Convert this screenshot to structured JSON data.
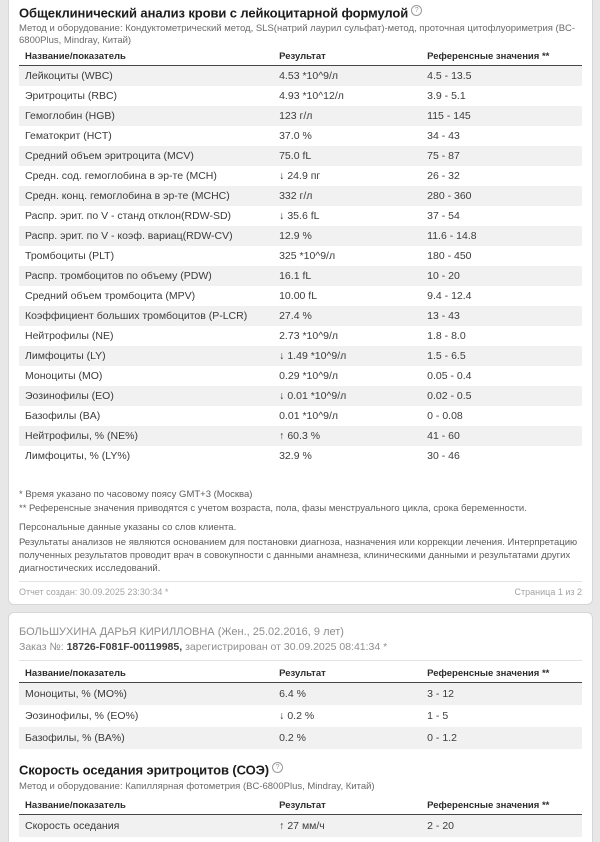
{
  "cbc": {
    "title": "Общеклинический анализ крови с лейкоцитарной формулой",
    "info_icon": "?",
    "method": "Метод и оборудование: Кондуктометрический метод, SLS(натрий лаурил сульфат)-метод, проточная цитофлуориметрия (BC-6800Plus, Mindray, Китай)",
    "columns": [
      "Название/показатель",
      "Результат",
      "Референсные значения **"
    ],
    "rows": [
      {
        "name": "Лейкоциты (WBC)",
        "arrow": "",
        "result": "4.53 *10^9/л",
        "ref": "4.5 - 13.5"
      },
      {
        "name": "Эритроциты (RBC)",
        "arrow": "",
        "result": "4.93 *10^12/л",
        "ref": "3.9 - 5.1"
      },
      {
        "name": "Гемоглобин (HGB)",
        "arrow": "",
        "result": "123 г/л",
        "ref": "115 - 145"
      },
      {
        "name": "Гематокрит (HCT)",
        "arrow": "",
        "result": "37.0 %",
        "ref": "34 - 43"
      },
      {
        "name": "Средний объем эритроцита (MCV)",
        "arrow": "",
        "result": "75.0 fL",
        "ref": "75 - 87"
      },
      {
        "name": "Средн. сод. гемоглобина в эр-те (MCH)",
        "arrow": "↓",
        "result": "24.9 пг",
        "ref": "26 - 32"
      },
      {
        "name": "Средн. конц. гемоглобина в эр-те (MCHC)",
        "arrow": "",
        "result": "332 г/л",
        "ref": "280 - 360"
      },
      {
        "name": "Распр. эрит. по V - станд отклон(RDW-SD)",
        "arrow": "↓",
        "result": "35.6 fL",
        "ref": "37 - 54"
      },
      {
        "name": "Распр. эрит. по V - коэф. вариац(RDW-CV)",
        "arrow": "",
        "result": "12.9 %",
        "ref": "11.6 - 14.8"
      },
      {
        "name": "Тромбоциты (PLT)",
        "arrow": "",
        "result": "325 *10^9/л",
        "ref": "180 - 450"
      },
      {
        "name": "Распр. тромбоцитов по объему (PDW)",
        "arrow": "",
        "result": "16.1 fL",
        "ref": "10 - 20"
      },
      {
        "name": "Средний объем тромбоцита (MPV)",
        "arrow": "",
        "result": "10.00 fL",
        "ref": "9.4 - 12.4"
      },
      {
        "name": "Коэффициент больших тромбоцитов (P-LCR)",
        "arrow": "",
        "result": "27.4 %",
        "ref": "13 - 43"
      },
      {
        "name": "Нейтрофилы (NE)",
        "arrow": "",
        "result": "2.73 *10^9/л",
        "ref": "1.8 - 8.0"
      },
      {
        "name": "Лимфоциты (LY)",
        "arrow": "↓",
        "result": "1.49 *10^9/л",
        "ref": "1.5 - 6.5"
      },
      {
        "name": "Моноциты (MO)",
        "arrow": "",
        "result": "0.29 *10^9/л",
        "ref": "0.05 - 0.4"
      },
      {
        "name": "Эозинофилы (EO)",
        "arrow": "↓",
        "result": "0.01 *10^9/л",
        "ref": "0.02 - 0.5"
      },
      {
        "name": "Базофилы (BA)",
        "arrow": "",
        "result": "0.01 *10^9/л",
        "ref": "0 - 0.08"
      },
      {
        "name": "Нейтрофилы, % (NE%)",
        "arrow": "↑",
        "result": "60.3 %",
        "ref": "41 - 60"
      },
      {
        "name": "Лимфоциты, % (LY%)",
        "arrow": "",
        "result": "32.9 %",
        "ref": "30 - 46"
      }
    ],
    "footnote1": "* Время указано по часовому поясу GMT+3 (Москва)",
    "footnote2": "** Референсные значения приводятся с учетом возраста, пола, фазы менструального цикла, срока беременности.",
    "personal_note": "Персональные данные указаны со слов клиента.",
    "disclaimer": "Результаты анализов не являются основанием для постановки диагноза, назначения или коррекции лечения. Интерпретацию полученных результатов проводит врач в совокупности с данными анамнеза, клиническими данными и результатами других диагностических исследований.",
    "report_created": "Отчет создан: 30.09.2025 23:30:34 *",
    "page_indicator": "Страница 1 из 2"
  },
  "page2": {
    "patient": "БОЛЬШУХИНА ДАРЬЯ КИРИЛЛОВНА (Жен., 25.02.2016, 9 лет)",
    "order_label": "Заказ №: ",
    "order_number": "18726-F081F-00119985,",
    "order_rest": " зарегистрирован от 30.09.2025 08:41:34 *",
    "columns": [
      "Название/показатель",
      "Результат",
      "Референсные значения **"
    ],
    "rows": [
      {
        "name": "Моноциты, % (MO%)",
        "arrow": "",
        "result": "6.4 %",
        "ref": "3 - 12"
      },
      {
        "name": "Эозинофилы, % (EO%)",
        "arrow": "↓",
        "result": "0.2 %",
        "ref": "1 - 5"
      },
      {
        "name": "Базофилы, % (BA%)",
        "arrow": "",
        "result": "0.2 %",
        "ref": "0 - 1.2"
      }
    ]
  },
  "esr": {
    "title": "Скорость оседания эритроцитов (СОЭ)",
    "info_icon": "?",
    "method": "Метод и оборудование: Капиллярная фотометрия (BC-6800Plus, Mindray, Китай)",
    "columns": [
      "Название/показатель",
      "Результат",
      "Референсные значения **"
    ],
    "rows": [
      {
        "name": "Скорость оседания",
        "arrow": "↑",
        "result": "27 мм/ч",
        "ref": "2 - 20"
      }
    ]
  }
}
